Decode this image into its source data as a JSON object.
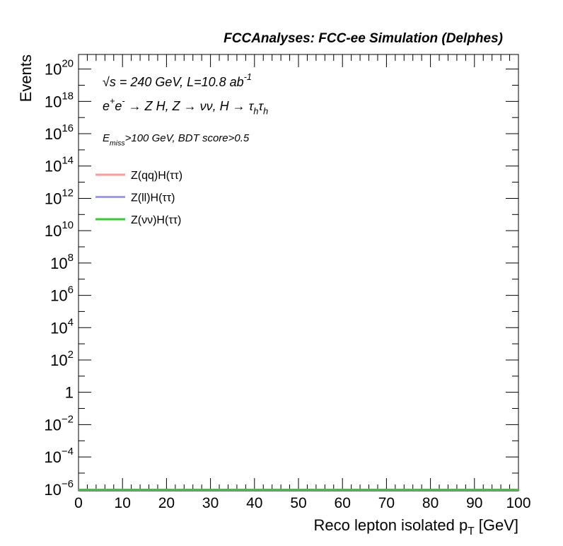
{
  "chart_data": {
    "type": "histogram",
    "title": "FCCAnalyses: FCC-ee Simulation (Delphes)",
    "annotations": [
      [
        {
          "text": "√s = 240 GeV, L=10.8 ab"
        },
        {
          "sup": "-1"
        }
      ],
      [
        {
          "text": "e"
        },
        {
          "sup": "+"
        },
        {
          "text": "e"
        },
        {
          "sup": "-"
        },
        {
          "text": " → Z H, Z  → νν, H → τ"
        },
        {
          "sub": "h"
        },
        {
          "text": "τ"
        },
        {
          "sub": "h"
        }
      ],
      [
        {
          "text": "E"
        },
        {
          "sub": "miss"
        },
        {
          "text": ">100 GeV, BDT score>0.5"
        }
      ]
    ],
    "x_label": [
      {
        "text": "Reco lepton isolated p"
      },
      {
        "sub": "T"
      },
      {
        "text": " [GeV]"
      }
    ],
    "y_label": "Events",
    "log_y": true,
    "xlim": [
      0,
      100
    ],
    "xticks": [
      0,
      10,
      20,
      30,
      40,
      50,
      60,
      70,
      80,
      90,
      100
    ],
    "ylim": [
      8e-07,
      8e+20
    ],
    "yticks": [
      {
        "value": 1e-06,
        "label": "10",
        "sup": "−6"
      },
      {
        "value": 0.0001,
        "label": "10",
        "sup": "−4"
      },
      {
        "value": 0.01,
        "label": "10",
        "sup": "−2"
      },
      1,
      {
        "value": 100.0,
        "label": "10",
        "sup": "2"
      },
      {
        "value": 10000.0,
        "label": "10",
        "sup": "4"
      },
      {
        "value": 1000000.0,
        "label": "10",
        "sup": "6"
      },
      {
        "value": 100000000.0,
        "label": "10",
        "sup": "8"
      },
      {
        "value": 10000000000.0,
        "label": "10",
        "sup": "10"
      },
      {
        "value": 1000000000000.0,
        "label": "10",
        "sup": "12"
      },
      {
        "value": 100000000000000.0,
        "label": "10",
        "sup": "14"
      },
      {
        "value": 1e+16,
        "label": "10",
        "sup": "16"
      },
      {
        "value": 1e+18,
        "label": "10",
        "sup": "18"
      },
      {
        "value": 1e+20,
        "label": "10",
        "sup": "20"
      }
    ],
    "legend": "upper left",
    "bins": [
      0,
      100
    ],
    "series": [
      {
        "name": "Z(qq)H(ττ)",
        "color": "#ff9999",
        "values": [
          0
        ]
      },
      {
        "name": "Z(ll)H(ττ)",
        "color": "#9999ff",
        "values": [
          0
        ]
      },
      {
        "name": "Z(νν)H(ττ)",
        "color": "#33cc33",
        "values": [
          0
        ]
      }
    ]
  }
}
